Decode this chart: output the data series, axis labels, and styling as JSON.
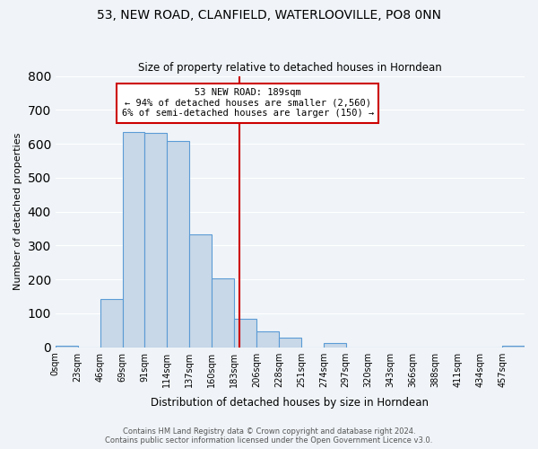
{
  "title": "53, NEW ROAD, CLANFIELD, WATERLOOVILLE, PO8 0NN",
  "subtitle": "Size of property relative to detached houses in Horndean",
  "xlabel": "Distribution of detached houses by size in Horndean",
  "ylabel": "Number of detached properties",
  "bar_color": "#c8d8e8",
  "bar_edge_color": "#5b9bd5",
  "background_color": "#f0f4f8",
  "bin_labels": [
    "0sqm",
    "23sqm",
    "46sqm",
    "69sqm",
    "91sqm",
    "114sqm",
    "137sqm",
    "160sqm",
    "183sqm",
    "206sqm",
    "228sqm",
    "251sqm",
    "274sqm",
    "297sqm",
    "320sqm",
    "343sqm",
    "366sqm",
    "388sqm",
    "411sqm",
    "434sqm",
    "457sqm"
  ],
  "bar_values": [
    5,
    0,
    143,
    635,
    631,
    609,
    332,
    202,
    85,
    46,
    28,
    0,
    13,
    0,
    0,
    0,
    0,
    0,
    0,
    0,
    5
  ],
  "ylim": [
    0,
    800
  ],
  "yticks": [
    0,
    100,
    200,
    300,
    400,
    500,
    600,
    700,
    800
  ],
  "vline_x": 189,
  "vline_color": "#cc0000",
  "annotation_title": "53 NEW ROAD: 189sqm",
  "annotation_line1": "← 94% of detached houses are smaller (2,560)",
  "annotation_line2": "6% of semi-detached houses are larger (150) →",
  "annotation_box_color": "#ffffff",
  "annotation_box_edge": "#cc0000",
  "footer1": "Contains HM Land Registry data © Crown copyright and database right 2024.",
  "footer2": "Contains public sector information licensed under the Open Government Licence v3.0."
}
